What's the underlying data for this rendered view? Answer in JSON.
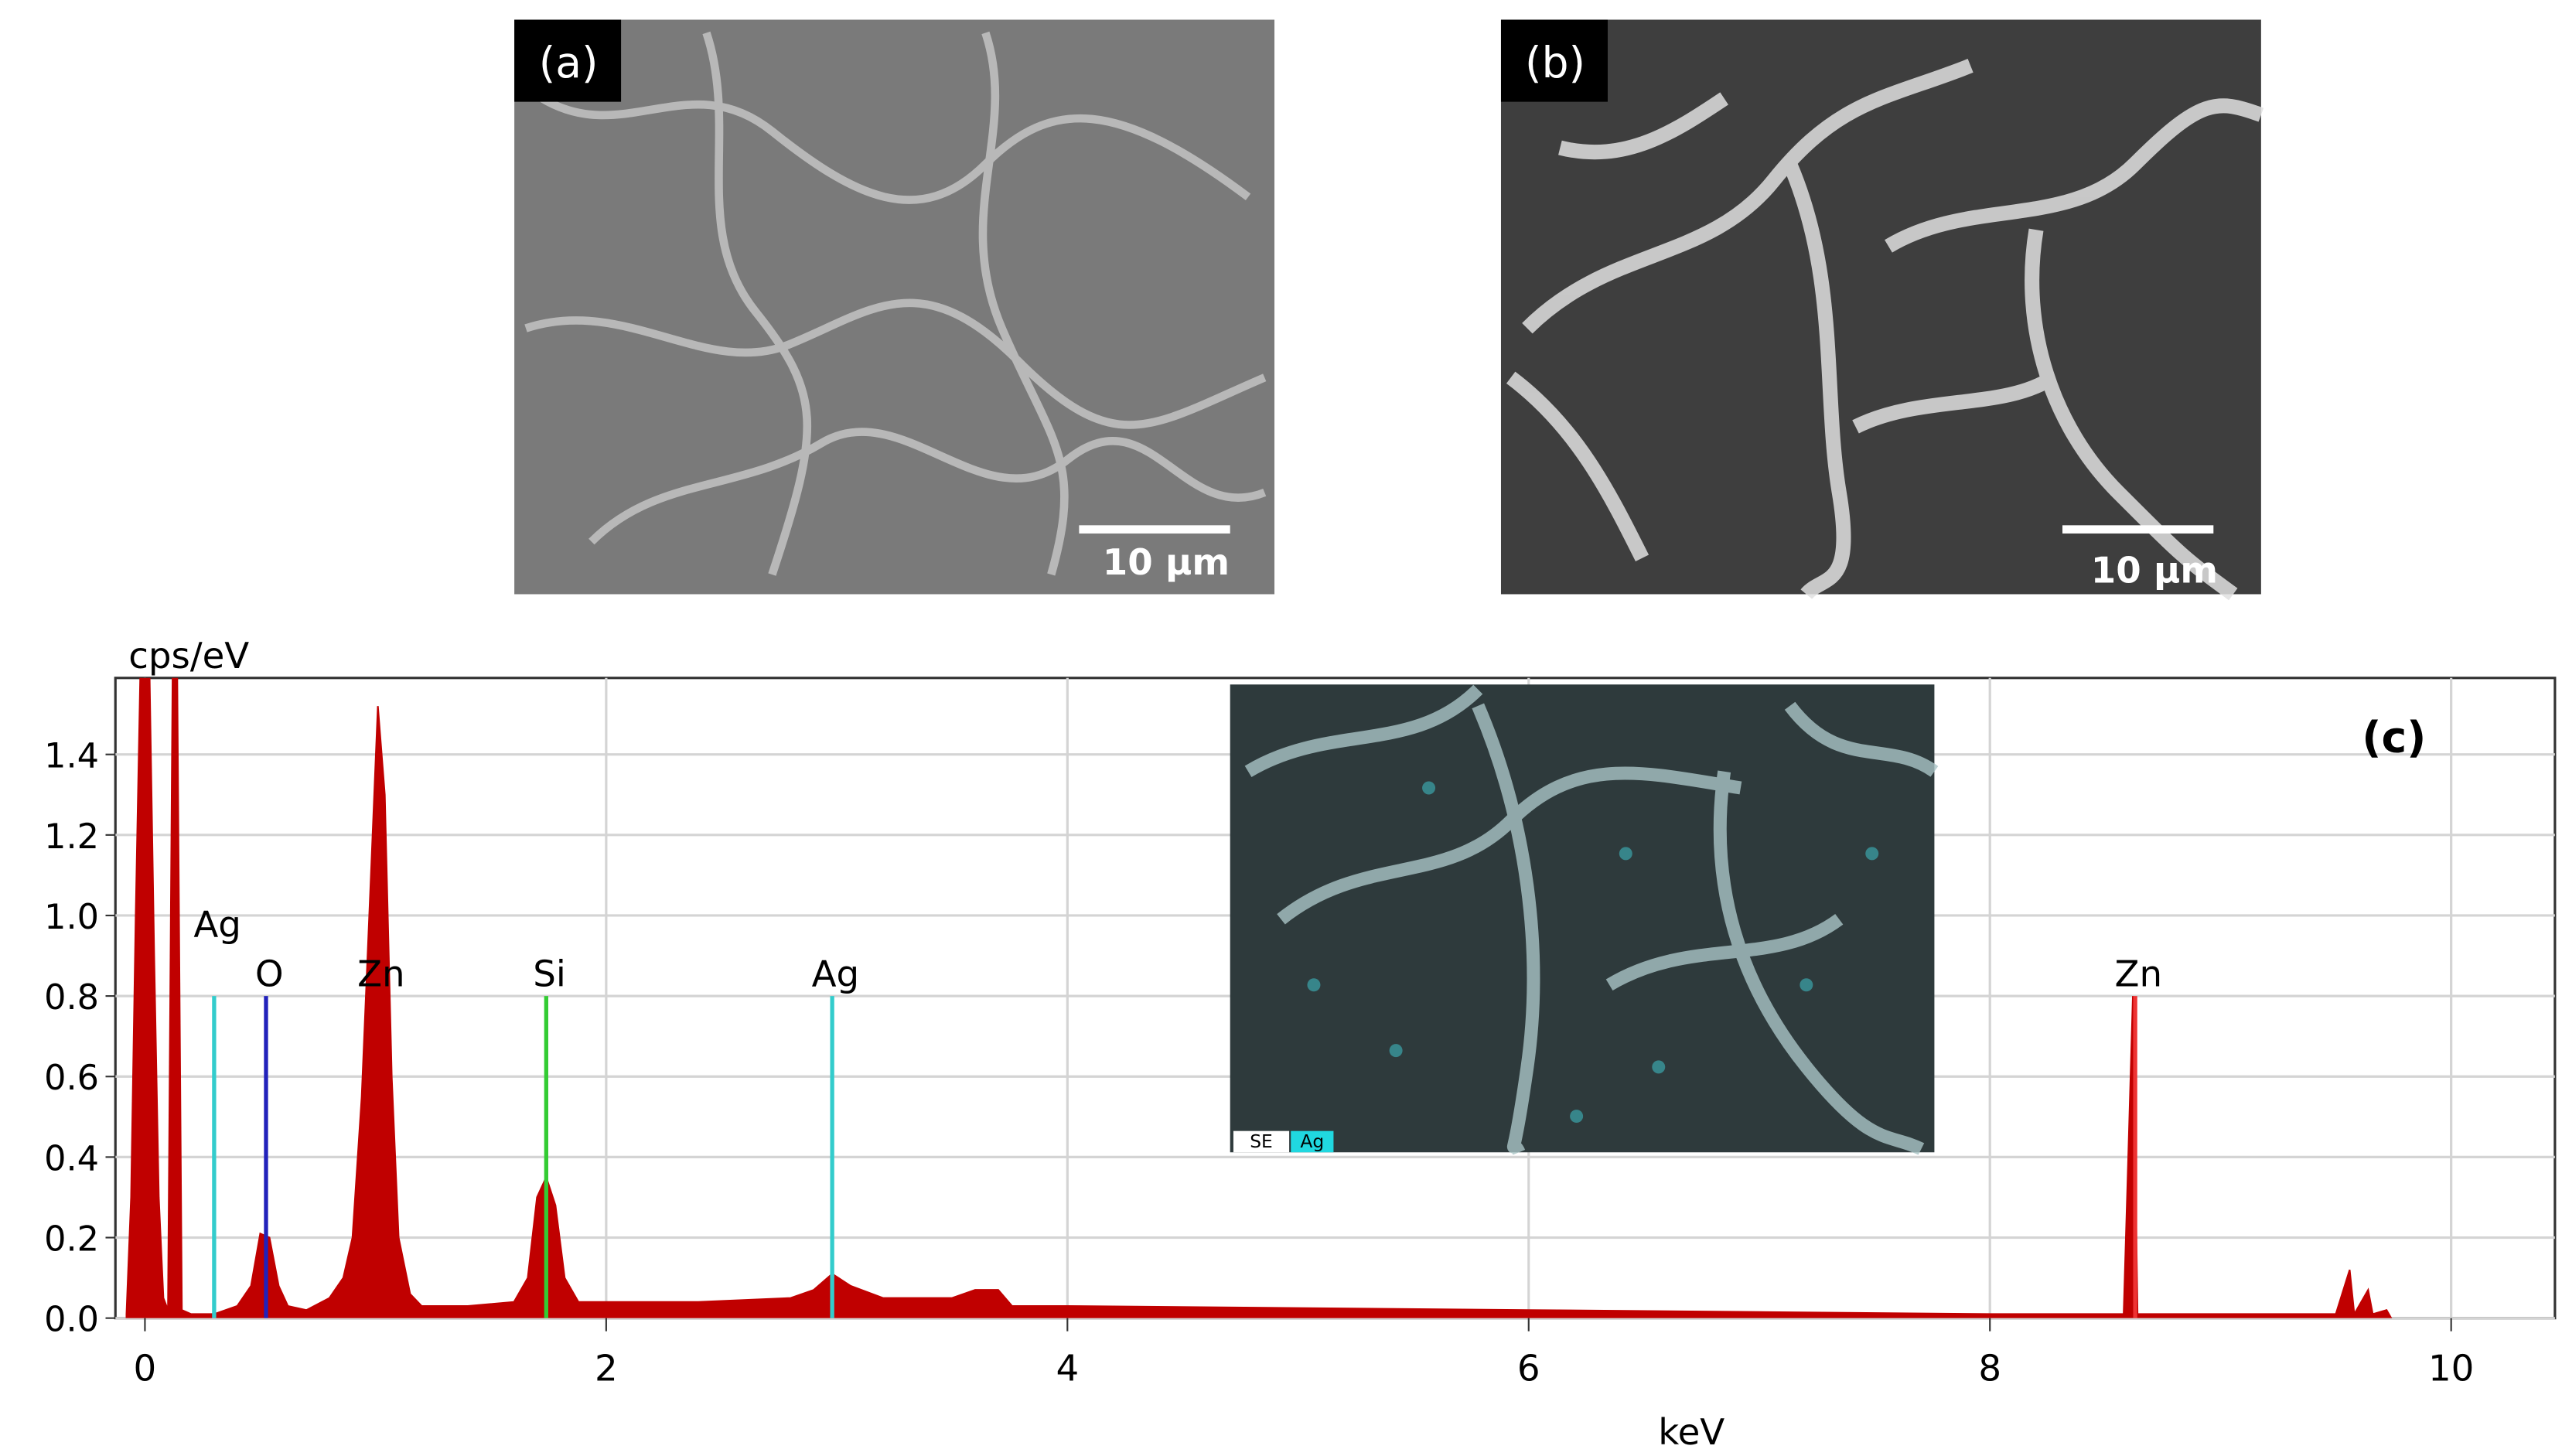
{
  "panels": {
    "a": {
      "label": "(a)",
      "scale_bar": "10 μm"
    },
    "b": {
      "label": "(b)",
      "scale_bar": "10 μm"
    }
  },
  "inset": {
    "labels": [
      "SE",
      "Ag"
    ]
  },
  "chart_data": {
    "type": "area",
    "panel_label": "(c)",
    "y_label": "cps/eV",
    "x_label": "keV",
    "color": "#c00000",
    "x": [
      -0.08,
      -0.06,
      -0.04,
      -0.02,
      0,
      0.02,
      0.04,
      0.06,
      0.08,
      0.1,
      0.12,
      0.14,
      0.16,
      0.2,
      0.3,
      0.4,
      0.46,
      0.5,
      0.54,
      0.58,
      0.62,
      0.7,
      0.8,
      0.86,
      0.9,
      0.94,
      0.98,
      1.01,
      1.04,
      1.07,
      1.1,
      1.15,
      1.2,
      1.4,
      1.6,
      1.66,
      1.7,
      1.74,
      1.78,
      1.82,
      1.88,
      2.0,
      2.4,
      2.8,
      2.9,
      2.98,
      3.06,
      3.2,
      3.5,
      3.6,
      3.7,
      3.76,
      4.0,
      5.0,
      6.0,
      7.0,
      8.0,
      8.58,
      8.6,
      8.62,
      8.64,
      9.0,
      9.5,
      9.56,
      9.58,
      9.64,
      9.66,
      9.72,
      9.74
    ],
    "values": [
      0.01,
      0.3,
      1.0,
      1.6,
      1.6,
      1.6,
      0.9,
      0.3,
      0.05,
      0.02,
      1.6,
      1.6,
      0.02,
      0.01,
      0.01,
      0.03,
      0.08,
      0.21,
      0.2,
      0.08,
      0.03,
      0.02,
      0.05,
      0.1,
      0.2,
      0.55,
      1.1,
      1.52,
      1.3,
      0.6,
      0.2,
      0.06,
      0.03,
      0.03,
      0.04,
      0.1,
      0.3,
      0.35,
      0.28,
      0.1,
      0.04,
      0.04,
      0.04,
      0.05,
      0.07,
      0.11,
      0.08,
      0.05,
      0.05,
      0.07,
      0.07,
      0.03,
      0.03,
      0.025,
      0.02,
      0.015,
      0.01,
      0.01,
      0.4,
      0.8,
      0.01,
      0.01,
      0.01,
      0.12,
      0.01,
      0.07,
      0.01,
      0.02,
      0
    ],
    "element_lines": [
      {
        "label": "Ag",
        "x": 0.3,
        "height": 0.8,
        "color": "#33cccc"
      },
      {
        "label": "O",
        "x": 0.525,
        "height": 0.8,
        "color": "#2222bb"
      },
      {
        "label": "Zn",
        "x": 1.01,
        "height": 0.8,
        "color": "#c00000"
      },
      {
        "label": "Si",
        "x": 1.74,
        "height": 0.8,
        "color": "#33cc33"
      },
      {
        "label": "Ag",
        "x": 2.98,
        "height": 0.8,
        "color": "#33cccc"
      },
      {
        "label": "Zn",
        "x": 8.63,
        "height": 0.8,
        "color": "#ee3333"
      }
    ],
    "xlim": [
      -0.128,
      10.45
    ],
    "ylim": [
      0,
      1.59
    ],
    "xticks": [
      0,
      2,
      4,
      6,
      8,
      10
    ],
    "yticks": [
      {
        "value": 0,
        "label": "0.0"
      },
      {
        "value": 0.2,
        "label": "0.2"
      },
      {
        "value": 0.4,
        "label": "0.4"
      },
      {
        "value": 0.6,
        "label": "0.6"
      },
      {
        "value": 0.8,
        "label": "0.8"
      },
      {
        "value": 1.0,
        "label": "1.0"
      },
      {
        "value": 1.2,
        "label": "1.2"
      },
      {
        "value": 1.4,
        "label": "1.4"
      }
    ],
    "grid": true
  }
}
